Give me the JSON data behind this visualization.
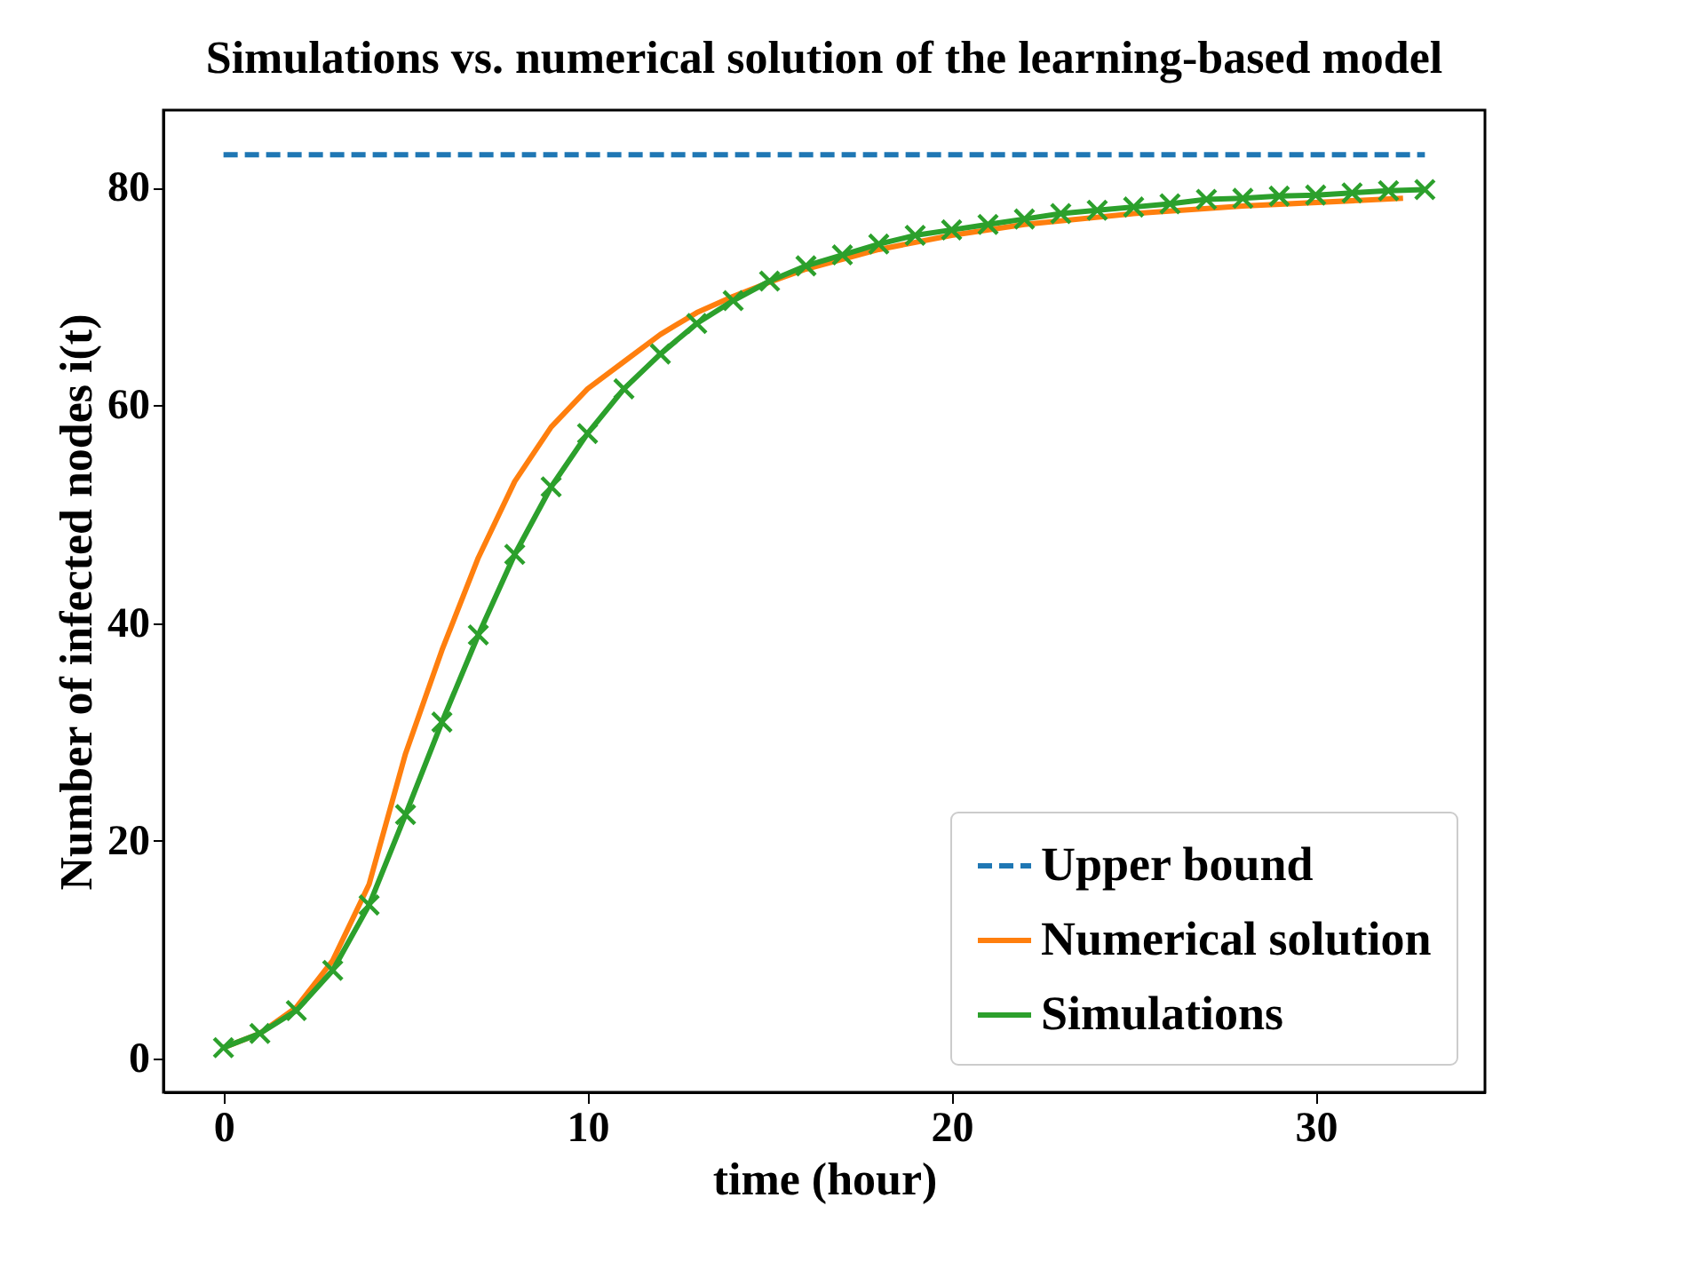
{
  "chart_data": {
    "type": "line",
    "title": "Simulations vs. numerical solution of the learning-based model",
    "xlabel": "time (hour)",
    "ylabel": "Number of infected nodes i(t)",
    "xlim": [
      -1.65,
      34.65
    ],
    "ylim": [
      -3.1,
      87.1
    ],
    "xticks": [
      0,
      10,
      20,
      30
    ],
    "yticks": [
      0,
      20,
      40,
      60,
      80
    ],
    "grid": false,
    "legend": "bottom right",
    "series": [
      {
        "name": "Upper bound",
        "color": "#1f77b4",
        "line_style": "dashed",
        "marker": "none",
        "x": [
          0,
          33
        ],
        "values": [
          83,
          83
        ]
      },
      {
        "name": "Numerical solution",
        "color": "#ff7f0e",
        "line_style": "solid",
        "marker": "none",
        "x": [
          0,
          1,
          2,
          3,
          4,
          5,
          6,
          7,
          8,
          9,
          10,
          11,
          12,
          13,
          14,
          15,
          16,
          18,
          20,
          22,
          25,
          28,
          32.4
        ],
        "values": [
          1,
          2.3,
          4.7,
          9,
          16,
          28,
          37.5,
          46,
          53,
          58,
          61.5,
          64,
          66.5,
          68.5,
          70,
          71.3,
          72.5,
          74.3,
          75.6,
          76.6,
          77.6,
          78.3,
          79
        ]
      },
      {
        "name": "Simulations",
        "color": "#2ca02c",
        "line_style": "solid",
        "marker": "cross",
        "x": [
          0,
          1,
          2,
          3,
          4,
          5,
          6,
          7,
          8,
          9,
          10,
          11,
          12,
          13,
          14,
          15,
          16,
          17,
          18,
          19,
          20,
          21,
          22,
          23,
          24,
          25,
          26,
          27,
          28,
          29,
          30,
          31,
          32,
          33
        ],
        "values": [
          1.0,
          2.3,
          4.4,
          8.1,
          14.1,
          22.4,
          30.9,
          38.9,
          46.3,
          52.5,
          57.4,
          61.5,
          64.7,
          67.5,
          69.6,
          71.4,
          72.8,
          73.8,
          74.8,
          75.6,
          76.1,
          76.6,
          77.1,
          77.6,
          77.9,
          78.2,
          78.5,
          78.9,
          79.0,
          79.2,
          79.3,
          79.5,
          79.7,
          79.8
        ]
      }
    ]
  }
}
